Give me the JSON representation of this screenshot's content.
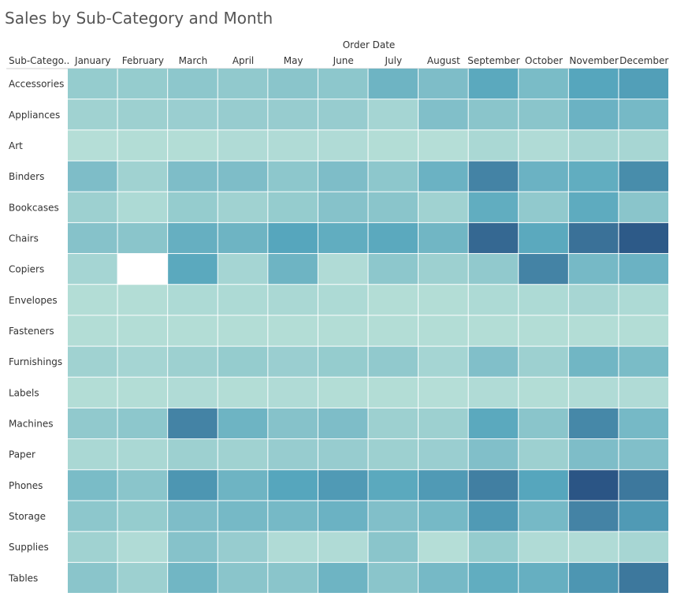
{
  "chart_data": {
    "type": "heatmap",
    "title": "Sales by Sub-Category and Month",
    "column_group_label": "Order Date",
    "row_header": "Sub-Catego..",
    "x_categories": [
      "January",
      "February",
      "March",
      "April",
      "May",
      "June",
      "July",
      "August",
      "September",
      "October",
      "November",
      "December"
    ],
    "y_categories": [
      "Accessories",
      "Appliances",
      "Art",
      "Binders",
      "Bookcases",
      "Chairs",
      "Copiers",
      "Envelopes",
      "Fasteners",
      "Furnishings",
      "Labels",
      "Machines",
      "Paper",
      "Phones",
      "Storage",
      "Supplies",
      "Tables"
    ],
    "values": [
      [
        0.25,
        0.25,
        0.3,
        0.28,
        0.32,
        0.3,
        0.5,
        0.4,
        0.62,
        0.42,
        0.65,
        0.68
      ],
      [
        0.18,
        0.2,
        0.22,
        0.24,
        0.24,
        0.24,
        0.15,
        0.38,
        0.32,
        0.32,
        0.52,
        0.45
      ],
      [
        0.05,
        0.06,
        0.06,
        0.08,
        0.08,
        0.08,
        0.06,
        0.05,
        0.12,
        0.08,
        0.14,
        0.14
      ],
      [
        0.4,
        0.18,
        0.4,
        0.4,
        0.3,
        0.4,
        0.3,
        0.52,
        0.8,
        0.52,
        0.58,
        0.76
      ],
      [
        0.2,
        0.1,
        0.25,
        0.18,
        0.25,
        0.35,
        0.32,
        0.18,
        0.58,
        0.28,
        0.6,
        0.32
      ],
      [
        0.35,
        0.32,
        0.55,
        0.5,
        0.65,
        0.58,
        0.62,
        0.48,
        0.92,
        0.62,
        0.88,
        0.98
      ],
      [
        0.15,
        null,
        0.62,
        0.15,
        0.5,
        0.08,
        0.3,
        0.2,
        0.28,
        0.8,
        0.45,
        0.52
      ],
      [
        0.06,
        0.06,
        0.1,
        0.1,
        0.12,
        0.1,
        0.06,
        0.06,
        0.1,
        0.1,
        0.14,
        0.1
      ],
      [
        0.06,
        0.06,
        0.06,
        0.06,
        0.06,
        0.06,
        0.06,
        0.06,
        0.06,
        0.06,
        0.06,
        0.06
      ],
      [
        0.18,
        0.15,
        0.2,
        0.25,
        0.22,
        0.25,
        0.28,
        0.15,
        0.38,
        0.2,
        0.48,
        0.42
      ],
      [
        0.06,
        0.06,
        0.08,
        0.06,
        0.08,
        0.06,
        0.06,
        0.05,
        0.08,
        0.06,
        0.08,
        0.08
      ],
      [
        0.28,
        0.3,
        0.8,
        0.5,
        0.35,
        0.4,
        0.2,
        0.2,
        0.62,
        0.32,
        0.78,
        0.45
      ],
      [
        0.12,
        0.12,
        0.2,
        0.18,
        0.24,
        0.24,
        0.2,
        0.22,
        0.38,
        0.2,
        0.4,
        0.38
      ],
      [
        0.42,
        0.32,
        0.72,
        0.5,
        0.65,
        0.7,
        0.62,
        0.7,
        0.82,
        0.65,
        1.0,
        0.85
      ],
      [
        0.3,
        0.25,
        0.4,
        0.45,
        0.45,
        0.52,
        0.38,
        0.45,
        0.7,
        0.45,
        0.8,
        0.7
      ],
      [
        0.18,
        0.08,
        0.35,
        0.24,
        0.08,
        0.08,
        0.32,
        0.05,
        0.25,
        0.08,
        0.08,
        0.14
      ],
      [
        0.32,
        0.2,
        0.48,
        0.32,
        0.32,
        0.5,
        0.32,
        0.45,
        0.58,
        0.55,
        0.72,
        0.85
      ]
    ],
    "value_note": "Relative sales intensity estimated from cell colour (0 = lowest, 1 = highest; null = no data)",
    "color_scale": {
      "low": "#bde3d9",
      "mid": "#56a6bd",
      "high": "#2b5585",
      "empty": "#ffffff"
    },
    "legend": "none",
    "grid": true
  }
}
